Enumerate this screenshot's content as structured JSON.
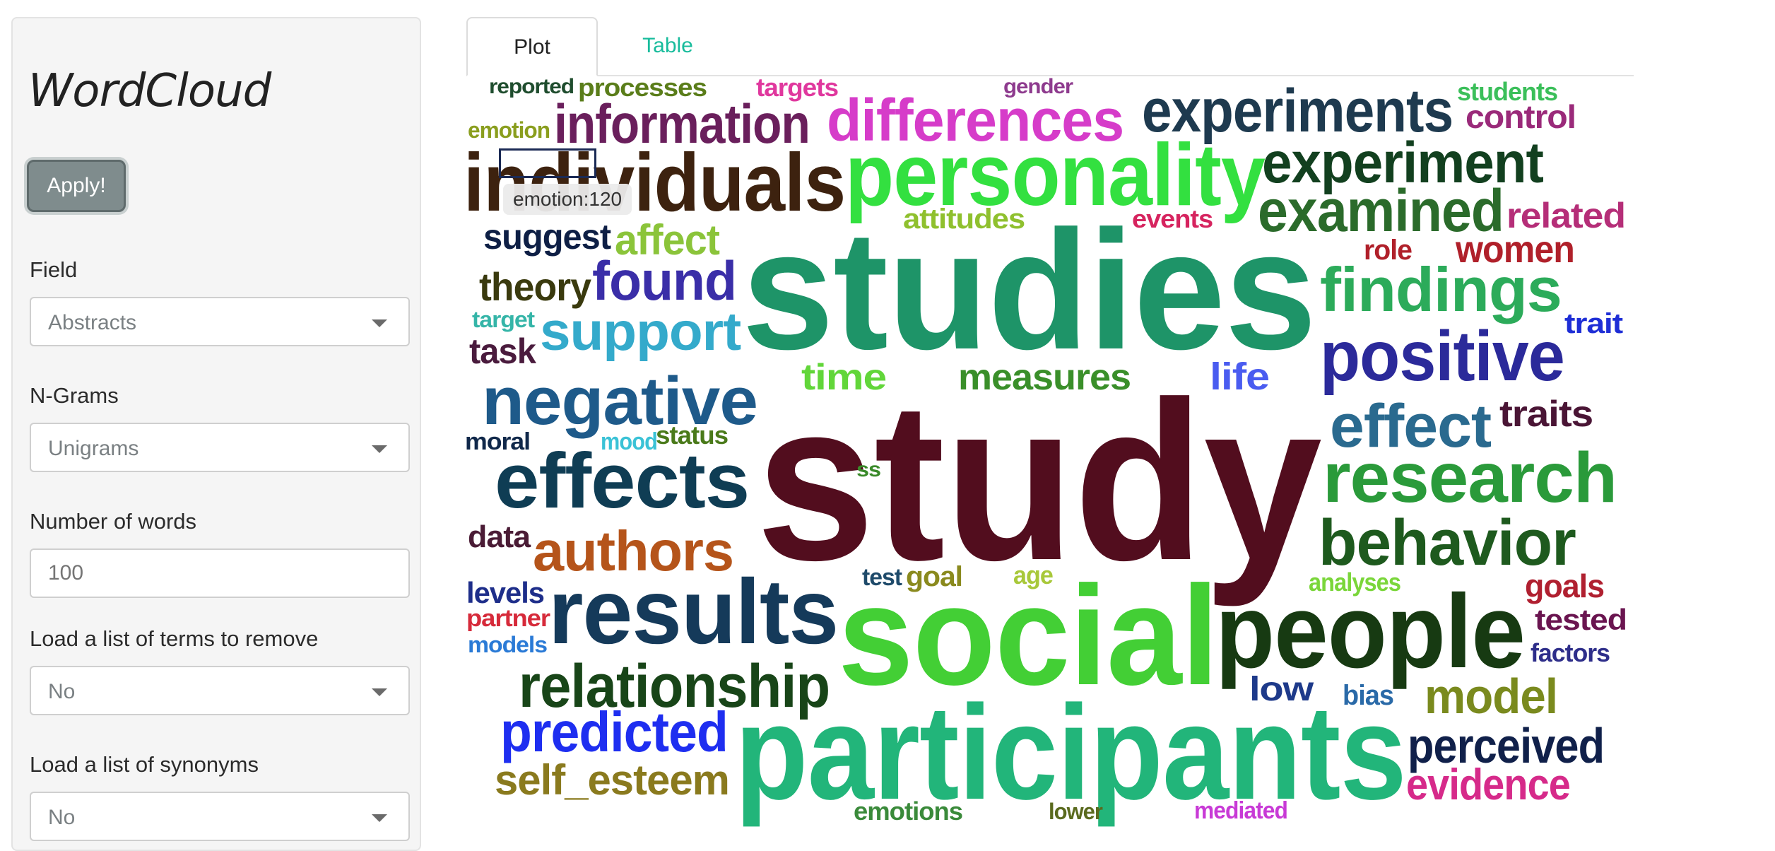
{
  "sidebar": {
    "title": "WordCloud",
    "apply_label": "Apply!",
    "field": {
      "label": "Field",
      "value": "Abstracts"
    },
    "ngrams": {
      "label": "N-Grams",
      "value": "Unigrams"
    },
    "num_words": {
      "label": "Number of words",
      "placeholder": "100"
    },
    "remove_terms": {
      "label": "Load a list of terms to remove",
      "value": "No"
    },
    "synonyms": {
      "label": "Load a list of synonyms",
      "value": "No"
    }
  },
  "tabs": {
    "plot": "Plot",
    "table": "Table"
  },
  "tooltip": {
    "text": "emotion:120"
  },
  "words": [
    {
      "t": "reported",
      "c": "#1f4d2e"
    },
    {
      "t": "processes",
      "c": "#5a7d1a"
    },
    {
      "t": "targets",
      "c": "#e0389e"
    },
    {
      "t": "gender",
      "c": "#8e3b8e"
    },
    {
      "t": "students",
      "c": "#3bbf5a"
    },
    {
      "t": "emotion",
      "c": "#8a9e1e"
    },
    {
      "t": "information",
      "c": "#6a1f5c"
    },
    {
      "t": "differences",
      "c": "#d63cc9"
    },
    {
      "t": "experiments",
      "c": "#1e3a4f"
    },
    {
      "t": "control",
      "c": "#9a2a7a"
    },
    {
      "t": "individuals",
      "c": "#3d220f"
    },
    {
      "t": "personality",
      "c": "#33e040"
    },
    {
      "t": "experiment",
      "c": "#12401f"
    },
    {
      "t": "examined",
      "c": "#2b6b2b"
    },
    {
      "t": "related",
      "c": "#b52e78"
    },
    {
      "t": "attitudes",
      "c": "#8fc02e"
    },
    {
      "t": "events",
      "c": "#d6245f"
    },
    {
      "t": "suggest",
      "c": "#0e1f45"
    },
    {
      "t": "affect",
      "c": "#8bc43a"
    },
    {
      "t": "role",
      "c": "#b0202a"
    },
    {
      "t": "women",
      "c": "#b0202a"
    },
    {
      "t": "theory",
      "c": "#3a3a0e"
    },
    {
      "t": "found",
      "c": "#3a2ea8"
    },
    {
      "t": "studies",
      "c": "#1e9468"
    },
    {
      "t": "findings",
      "c": "#2cab5a"
    },
    {
      "t": "target",
      "c": "#35b5a8"
    },
    {
      "t": "support",
      "c": "#34aacb"
    },
    {
      "t": "trait",
      "c": "#1e2ed6"
    },
    {
      "t": "task",
      "c": "#4a1b3d"
    },
    {
      "t": "positive",
      "c": "#2b2a9a"
    },
    {
      "t": "time",
      "c": "#62d63a"
    },
    {
      "t": "measures",
      "c": "#3a8f2a"
    },
    {
      "t": "life",
      "c": "#4a5cf0"
    },
    {
      "t": "negative",
      "c": "#1e5a8a"
    },
    {
      "t": "traits",
      "c": "#4a1535"
    },
    {
      "t": "moral",
      "c": "#10284a"
    },
    {
      "t": "mood",
      "c": "#3ac2d6"
    },
    {
      "t": "status",
      "c": "#4a7a1a"
    },
    {
      "t": "study",
      "c": "#520d1e"
    },
    {
      "t": "effect",
      "c": "#2a6a8f"
    },
    {
      "t": "effects",
      "c": "#0f3d54"
    },
    {
      "t": "ss",
      "c": "#3a8a2a"
    },
    {
      "t": "research",
      "c": "#2a9a3a"
    },
    {
      "t": "behavior",
      "c": "#1e5a1e"
    },
    {
      "t": "data",
      "c": "#4a1b35"
    },
    {
      "t": "authors",
      "c": "#b5541a"
    },
    {
      "t": "test",
      "c": "#1e4a6a"
    },
    {
      "t": "goal",
      "c": "#8a8a1e"
    },
    {
      "t": "age",
      "c": "#a8c83a"
    },
    {
      "t": "analyses",
      "c": "#7ad63a"
    },
    {
      "t": "goals",
      "c": "#b02030"
    },
    {
      "t": "levels",
      "c": "#1e2e8a"
    },
    {
      "t": "results",
      "c": "#153a5a"
    },
    {
      "t": "social",
      "c": "#43cf35"
    },
    {
      "t": "people",
      "c": "#173a12"
    },
    {
      "t": "tested",
      "c": "#6a1550"
    },
    {
      "t": "partner",
      "c": "#d62a3a"
    },
    {
      "t": "models",
      "c": "#2a7ad6"
    },
    {
      "t": "factors",
      "c": "#2e2e8a"
    },
    {
      "t": "relationship",
      "c": "#184518"
    },
    {
      "t": "low",
      "c": "#1e3a8a"
    },
    {
      "t": "bias",
      "c": "#2a6aa8"
    },
    {
      "t": "model",
      "c": "#7a8a1e"
    },
    {
      "t": "predicted",
      "c": "#1e2ef0"
    },
    {
      "t": "participants",
      "c": "#22b57a"
    },
    {
      "t": "perceived",
      "c": "#10204a"
    },
    {
      "t": "self_esteem",
      "c": "#8a7a1e"
    },
    {
      "t": "evidence",
      "c": "#d62a8a"
    },
    {
      "t": "emotions",
      "c": "#3a8a3a"
    },
    {
      "t": "lower",
      "c": "#5a6a1e"
    },
    {
      "t": "mediated",
      "c": "#c83ad6"
    }
  ]
}
